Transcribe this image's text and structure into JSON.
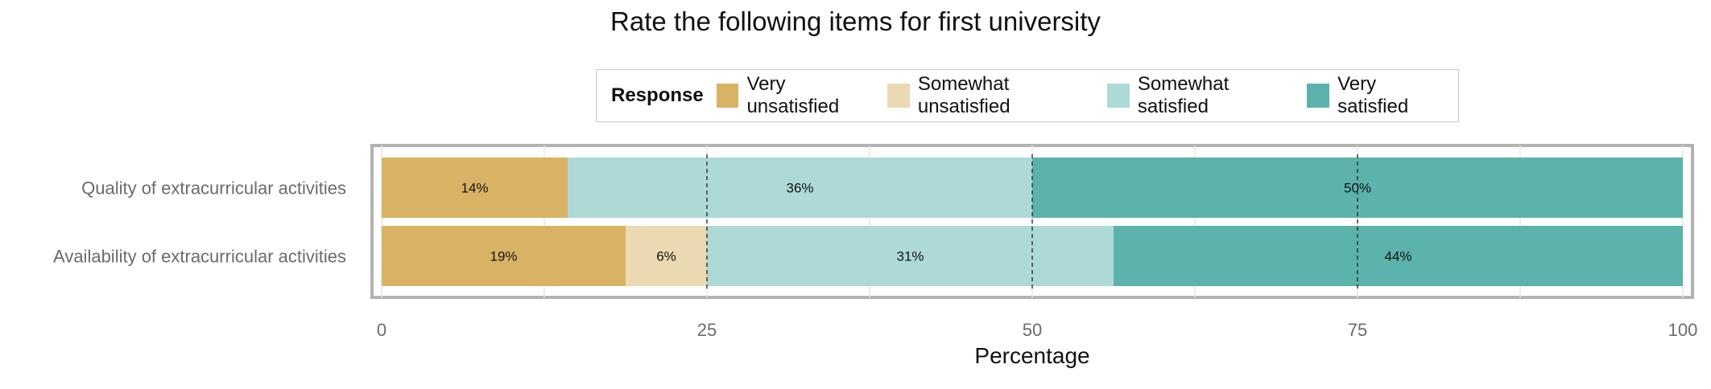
{
  "chart_data": {
    "type": "bar",
    "orientation": "horizontal",
    "stacked": true,
    "title": "Rate the following items for first university",
    "xlabel": "Percentage",
    "ylabel": "",
    "xlim": [
      0,
      100
    ],
    "x_ticks": [
      "0",
      "25",
      "50",
      "75",
      "100"
    ],
    "categories": [
      "Quality of extracurricular activities",
      "Availability of extracurricular activities"
    ],
    "legend_title": "Response",
    "legend_position": "top",
    "grid": true,
    "series": [
      {
        "name": "Very unsatisfied",
        "color": "#D9B365",
        "values": [
          14.3,
          18.75
        ],
        "labels": [
          "14%",
          "19%"
        ]
      },
      {
        "name": "Somewhat unsatisfied",
        "color": "#EBD9B2",
        "values": [
          0,
          6.25
        ],
        "labels": [
          "",
          "6%"
        ]
      },
      {
        "name": "Somewhat satisfied",
        "color": "#ADD9D7",
        "values": [
          35.7,
          31.25
        ],
        "labels": [
          "36%",
          "31%"
        ]
      },
      {
        "name": "Very satisfied",
        "color": "#5BB3AB",
        "values": [
          50.0,
          43.75
        ],
        "labels": [
          "50%",
          "44%"
        ]
      }
    ]
  }
}
